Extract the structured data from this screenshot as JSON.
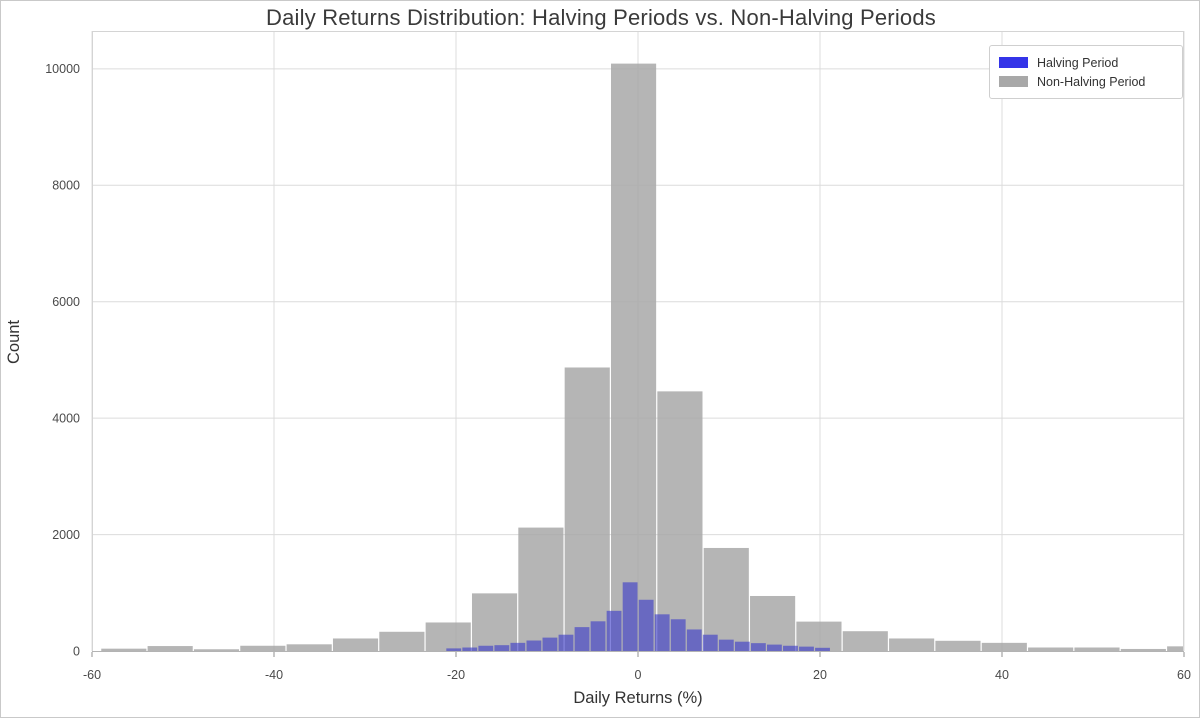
{
  "chart_data": {
    "type": "histogram",
    "title": "Daily Returns Distribution: Halving Periods vs. Non-Halving Periods",
    "xlabel": "Daily Returns (%)",
    "ylabel": "Count",
    "xlim": [
      -60,
      60
    ],
    "ylim": [
      0,
      10650
    ],
    "xticks": [
      -60,
      -40,
      -20,
      0,
      20,
      40,
      60
    ],
    "xtick_labels": [
      "-60",
      "-40",
      "-20",
      "0",
      "20",
      "40",
      "60"
    ],
    "yticks": [
      0,
      2000,
      4000,
      6000,
      8000,
      10000
    ],
    "ytick_labels": [
      "0",
      "2000",
      "4000",
      "6000",
      "8000",
      "10000"
    ],
    "grid": true,
    "grid_color": "#dcdcdc",
    "legend": {
      "position": "upper-right",
      "items": [
        {
          "label": "Halving Period",
          "color": "#3434e8"
        },
        {
          "label": "Non-Halving Period",
          "color": "#a8a8a8"
        }
      ]
    },
    "series": [
      {
        "name": "Non-Halving Period",
        "color": "#a8a8a8",
        "opacity": 0.85,
        "bin_start": -59.05,
        "bin_width": 5.0925,
        "counts": [
          40,
          85,
          30,
          90,
          115,
          215,
          330,
          490,
          990,
          2120,
          4870,
          10090,
          4460,
          1770,
          945,
          505,
          340,
          215,
          175,
          140,
          60,
          60,
          35,
          80
        ]
      },
      {
        "name": "Halving Period",
        "color": "#3a3ac8",
        "opacity": 0.62,
        "bin_start": -21.13,
        "bin_width": 1.762,
        "counts": [
          45,
          60,
          90,
          100,
          140,
          180,
          230,
          280,
          410,
          510,
          690,
          1180,
          880,
          630,
          545,
          370,
          280,
          195,
          160,
          135,
          110,
          90,
          75,
          55
        ]
      }
    ]
  }
}
